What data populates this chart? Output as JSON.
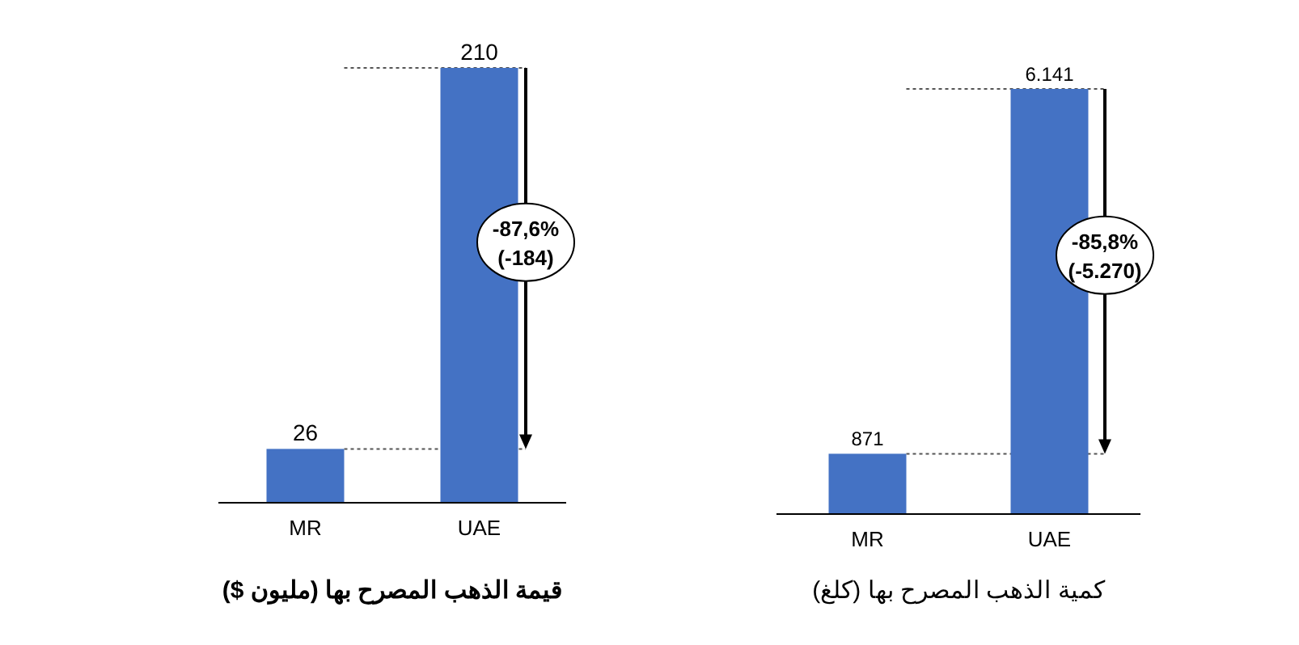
{
  "chart_data": [
    {
      "type": "bar",
      "title": "قيمة الذهب المصرح بها (مليون $)",
      "categories": [
        "MR",
        "UAE"
      ],
      "values": [
        26,
        210
      ],
      "color": "#4472c4",
      "data_labels": true,
      "ref_lines": [
        {
          "axis": "y",
          "value": 210,
          "line_style": "dotted"
        },
        {
          "axis": "y",
          "value": 26,
          "line_style": "dotted"
        }
      ],
      "annotations": [
        "-87,6%\n(-184)"
      ]
    },
    {
      "type": "bar",
      "title": "كمية الذهب المصرح بها (كلغ)",
      "categories": [
        "MR",
        "UAE"
      ],
      "values": [
        871,
        6141
      ],
      "color": "#4472c4",
      "value_labels": [
        "871",
        "6.141"
      ],
      "ref_lines": [
        {
          "axis": "y",
          "value": 6141,
          "line_style": "dotted"
        },
        {
          "axis": "y",
          "value": 871,
          "line_style": "dotted"
        }
      ],
      "annotations": [
        "-85,8%\n(-5.270)"
      ]
    }
  ]
}
